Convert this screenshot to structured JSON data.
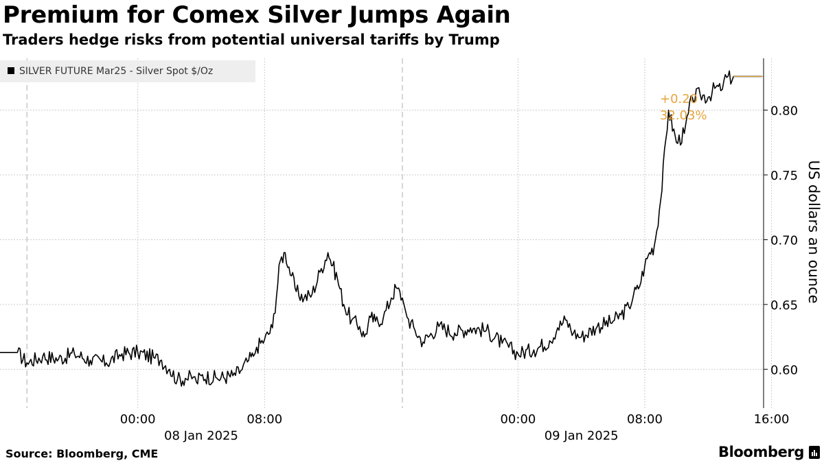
{
  "header": {
    "title": "Premium for Comex Silver Jumps Again",
    "subtitle": "Traders hedge risks from potential universal tariffs by Trump"
  },
  "footer": {
    "source": "Source: Bloomberg, CME",
    "brand": "Bloomberg"
  },
  "colors": {
    "line": "#000000",
    "annotation": "#e8a33a",
    "grid": "#cccccc",
    "legend_bg": "#eeeeee"
  },
  "chart_data": {
    "type": "line",
    "title": "Premium for Comex Silver Jumps Again",
    "subtitle": "Traders hedge risks from potential universal tariffs by Trump",
    "xlabel": "",
    "ylabel": "US dollars an ounce",
    "ylim": [
      0.57,
      0.84
    ],
    "yticks": [
      0.6,
      0.65,
      0.7,
      0.75,
      0.8
    ],
    "ytick_labels": [
      "0.60",
      "0.65",
      "0.70",
      "0.75",
      "0.80"
    ],
    "x_unit": "hours from 2025-01-08 00:00",
    "xlim": [
      -8.7,
      39.5
    ],
    "xticks": [
      0,
      8,
      24,
      32,
      40
    ],
    "xtick_labels": [
      "00:00",
      "08:00",
      "00:00",
      "08:00",
      "16:00"
    ],
    "date_labels": [
      {
        "x": 4,
        "label": "08 Jan 2025"
      },
      {
        "x": 28,
        "label": "09 Jan 2025"
      }
    ],
    "session_breaks": [
      -7,
      16.7
    ],
    "grid": true,
    "legend_position": "top-left",
    "series": [
      {
        "name": "SILVER FUTURE Mar25 - Silver Spot $/Oz",
        "x": [
          -8.7,
          -7.6,
          -7,
          -6,
          -5,
          -4,
          -3,
          -2,
          -1,
          0,
          1,
          1.5,
          2,
          2.5,
          3,
          3.5,
          3.7,
          4,
          5,
          6,
          6.5,
          7,
          7.3,
          7.5,
          8,
          8.5,
          9,
          9.3,
          9.7,
          10,
          10.5,
          11,
          11.5,
          12,
          12.3,
          12.6,
          13,
          13.5,
          14,
          14.3,
          14.7,
          15,
          15.5,
          16,
          16.3,
          16.7,
          17,
          17.5,
          18,
          19,
          20,
          21,
          22,
          23,
          24,
          25,
          26,
          26.5,
          27,
          27.5,
          28,
          29,
          30,
          30.5,
          31,
          31.3,
          31.6,
          32,
          32.3,
          32.6,
          33,
          33.5,
          34,
          34.5,
          35,
          35.5,
          36,
          36.5,
          36.8,
          37,
          37.6,
          39.4
        ],
        "values": [
          0.613,
          0.613,
          0.605,
          0.61,
          0.608,
          0.612,
          0.607,
          0.605,
          0.612,
          0.613,
          0.609,
          0.607,
          0.6,
          0.592,
          0.593,
          0.594,
          0.59,
          0.595,
          0.593,
          0.595,
          0.599,
          0.607,
          0.61,
          0.617,
          0.623,
          0.632,
          0.684,
          0.69,
          0.672,
          0.66,
          0.655,
          0.658,
          0.675,
          0.69,
          0.68,
          0.67,
          0.65,
          0.638,
          0.633,
          0.625,
          0.64,
          0.637,
          0.64,
          0.655,
          0.663,
          0.655,
          0.64,
          0.63,
          0.621,
          0.633,
          0.628,
          0.632,
          0.63,
          0.62,
          0.612,
          0.615,
          0.622,
          0.632,
          0.638,
          0.628,
          0.625,
          0.633,
          0.637,
          0.642,
          0.648,
          0.658,
          0.662,
          0.68,
          0.69,
          0.695,
          0.73,
          0.8,
          0.775,
          0.782,
          0.81,
          0.812,
          0.81,
          0.818,
          0.815,
          0.823,
          0.826,
          0.826
        ]
      }
    ],
    "annotation": {
      "change": "+0.20",
      "percent": "32.03%"
    }
  }
}
